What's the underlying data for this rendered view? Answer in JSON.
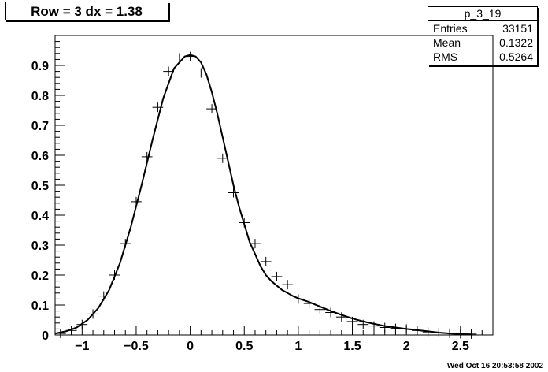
{
  "header": {
    "title": "Row = 3 dx =   1.38"
  },
  "stats": {
    "name": "p_3_19",
    "rows": [
      {
        "label": "Entries",
        "value": "33151"
      },
      {
        "label": "Mean",
        "value": "0.1322"
      },
      {
        "label": "RMS",
        "value": "0.5264"
      }
    ]
  },
  "footer": {
    "date": "Wed Oct 16 20:53:58 2002"
  },
  "chart_data": {
    "type": "scatter",
    "title": "",
    "xlabel": "",
    "ylabel": "",
    "xlim": [
      -1.25,
      2.8
    ],
    "ylim": [
      0,
      1.0
    ],
    "x_ticks": [
      -1,
      -0.5,
      0,
      0.5,
      1,
      1.5,
      2,
      2.5
    ],
    "x_tick_labels": [
      "−1",
      "−0.5",
      "0",
      "0.5",
      "1",
      "1.5",
      "2",
      "2.5"
    ],
    "y_ticks": [
      0,
      0.1,
      0.2,
      0.3,
      0.4,
      0.5,
      0.6,
      0.7,
      0.8,
      0.9
    ],
    "y_tick_labels": [
      "0",
      "0.1",
      "0.2",
      "0.3",
      "0.4",
      "0.5",
      "0.6",
      "0.7",
      "0.8",
      "0.9"
    ],
    "grid": false,
    "bin_half_width": 0.05,
    "series": [
      {
        "type": "points",
        "x": [
          -1.2,
          -1.1,
          -1.0,
          -0.9,
          -0.8,
          -0.7,
          -0.6,
          -0.5,
          -0.4,
          -0.3,
          -0.2,
          -0.1,
          0.0,
          0.1,
          0.2,
          0.3,
          0.4,
          0.5,
          0.6,
          0.7,
          0.8,
          0.9,
          1.0,
          1.1,
          1.2,
          1.3,
          1.4,
          1.5,
          1.6,
          1.7,
          1.8,
          1.9,
          2.0,
          2.1,
          2.2,
          2.3,
          2.4,
          2.5,
          2.6
        ],
        "y": [
          0.005,
          0.015,
          0.035,
          0.07,
          0.13,
          0.2,
          0.305,
          0.445,
          0.595,
          0.76,
          0.88,
          0.925,
          0.93,
          0.875,
          0.755,
          0.59,
          0.475,
          0.375,
          0.305,
          0.245,
          0.195,
          0.168,
          0.12,
          0.105,
          0.085,
          0.075,
          0.06,
          0.045,
          0.035,
          0.03,
          0.025,
          0.022,
          0.02,
          0.015,
          0.01,
          0.008,
          0.006,
          0.004,
          0.003
        ]
      },
      {
        "type": "curve",
        "x": [
          -1.25,
          -1.15,
          -1.05,
          -0.95,
          -0.85,
          -0.75,
          -0.65,
          -0.55,
          -0.45,
          -0.35,
          -0.25,
          -0.15,
          -0.05,
          0.0,
          0.05,
          0.1,
          0.15,
          0.2,
          0.25,
          0.3,
          0.35,
          0.4,
          0.45,
          0.5,
          0.55,
          0.6,
          0.65,
          0.7,
          0.75,
          0.8,
          0.85,
          0.9,
          0.95,
          1.0,
          1.1,
          1.2,
          1.3,
          1.4,
          1.5,
          1.6,
          1.7,
          1.8,
          1.9,
          2.0,
          2.1,
          2.2,
          2.3,
          2.4,
          2.5,
          2.6
        ],
        "y": [
          0.005,
          0.012,
          0.025,
          0.05,
          0.09,
          0.15,
          0.24,
          0.36,
          0.5,
          0.65,
          0.79,
          0.89,
          0.93,
          0.935,
          0.93,
          0.91,
          0.87,
          0.81,
          0.74,
          0.66,
          0.58,
          0.5,
          0.43,
          0.37,
          0.31,
          0.27,
          0.23,
          0.2,
          0.18,
          0.165,
          0.15,
          0.14,
          0.13,
          0.122,
          0.11,
          0.095,
          0.08,
          0.067,
          0.055,
          0.045,
          0.037,
          0.03,
          0.025,
          0.02,
          0.016,
          0.012,
          0.008,
          0.005,
          0.003,
          0.002
        ]
      }
    ]
  }
}
